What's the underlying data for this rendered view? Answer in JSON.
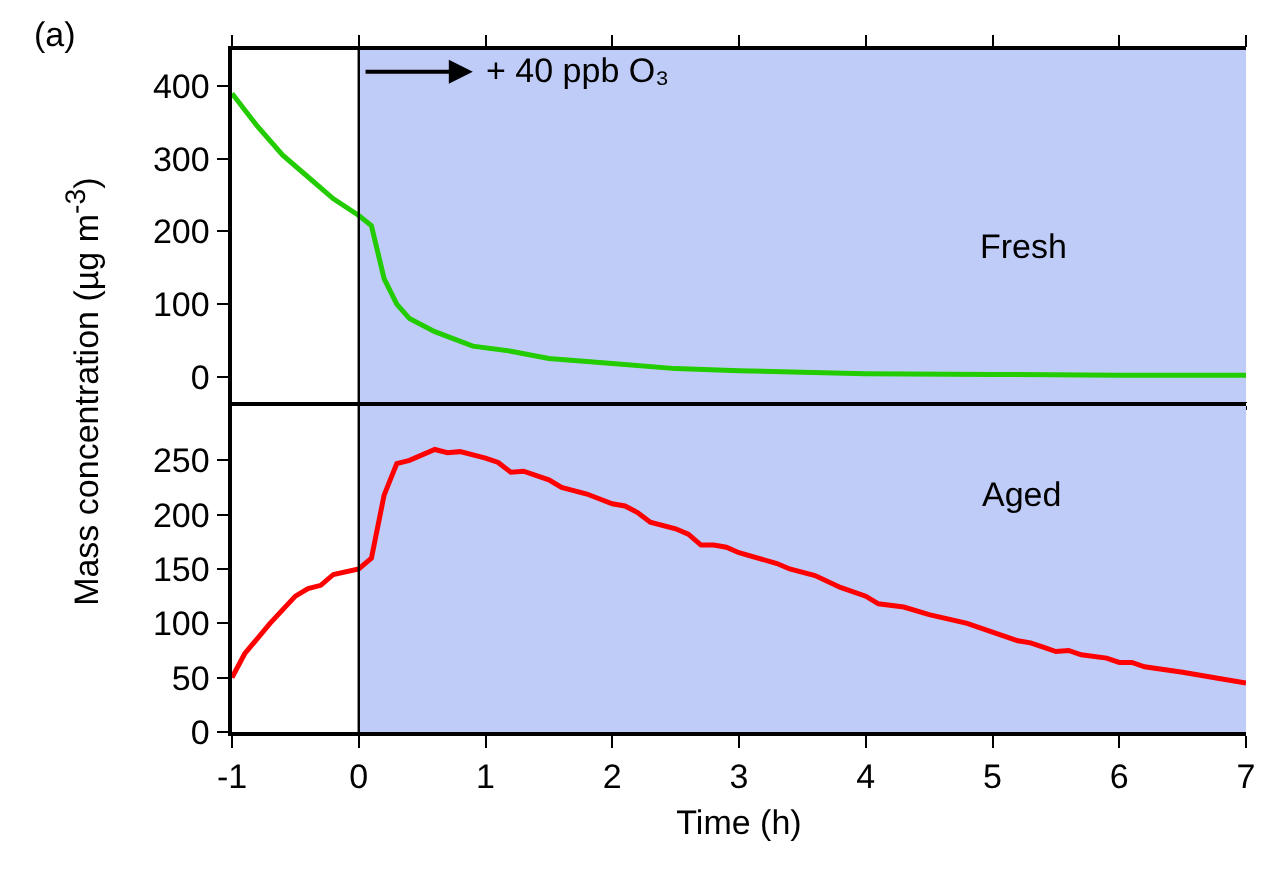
{
  "chart_data": [
    {
      "type": "line",
      "x": [
        -1,
        -0.8,
        -0.6,
        -0.4,
        -0.2,
        0,
        0.1,
        0.2,
        0.3,
        0.4,
        0.6,
        0.9,
        1.2,
        1.5,
        2,
        2.5,
        3,
        3.5,
        4,
        5,
        6,
        7
      ],
      "series": [
        {
          "color": "#22cc00",
          "values": [
            390,
            345,
            305,
            275,
            245,
            222,
            208,
            135,
            100,
            80,
            62,
            42,
            35,
            25,
            18,
            11,
            8,
            6,
            4,
            3,
            2,
            2
          ]
        }
      ],
      "xlim": [
        -1,
        7
      ],
      "ylim": [
        -35,
        450
      ],
      "yticks": [
        0,
        100,
        200,
        300,
        400
      ],
      "tick_labels": "y",
      "bands": [
        {
          "axis": "x",
          "from": 0,
          "to": 7,
          "color": "#c0ccf8"
        }
      ],
      "ref_lines": [
        {
          "axis": "x",
          "value": 0,
          "color": "#000000"
        }
      ],
      "annotations": [
        "(a)",
        {
          "text": "+ 40 ppb O₃",
          "x": 0,
          "y": 420
        },
        "Fresh"
      ]
    },
    {
      "type": "line",
      "x": [
        -1,
        -0.9,
        -0.7,
        -0.5,
        -0.4,
        -0.3,
        -0.2,
        0,
        0.1,
        0.2,
        0.3,
        0.4,
        0.6,
        0.7,
        0.8,
        1,
        1.1,
        1.2,
        1.3,
        1.5,
        1.6,
        1.8,
        2,
        2.1,
        2.2,
        2.3,
        2.5,
        2.6,
        2.7,
        2.8,
        2.9,
        3,
        3.3,
        3.4,
        3.6,
        3.8,
        4,
        4.1,
        4.3,
        4.5,
        4.8,
        5,
        5.2,
        5.3,
        5.4,
        5.5,
        5.6,
        5.7,
        5.9,
        6,
        6.1,
        6.2,
        6.5,
        6.8,
        7
      ],
      "series": [
        {
          "color": "#ff0000",
          "values": [
            50,
            72,
            100,
            125,
            132,
            135,
            145,
            150,
            160,
            218,
            247,
            250,
            260,
            257,
            258,
            252,
            248,
            239,
            240,
            232,
            225,
            219,
            210,
            208,
            202,
            193,
            187,
            182,
            172,
            172,
            170,
            165,
            155,
            150,
            144,
            133,
            125,
            118,
            115,
            108,
            100,
            92,
            84,
            82,
            78,
            74,
            75,
            71,
            68,
            64,
            64,
            60,
            55,
            49,
            45
          ]
        }
      ],
      "xlim": [
        -1,
        7
      ],
      "xticks": [
        -1,
        0,
        1,
        2,
        3,
        4,
        5,
        6,
        7
      ],
      "ylim": [
        0,
        300
      ],
      "yticks": [
        0,
        50,
        100,
        150,
        200,
        250
      ],
      "xlabel": "Time (h)",
      "ylabel": "Mass concentration (µg m$^{-3}$)",
      "bands": [
        {
          "axis": "x",
          "from": 0,
          "to": 7,
          "color": "#c0ccf8"
        }
      ],
      "ref_lines": [
        {
          "axis": "x",
          "value": 0,
          "color": "#000000"
        }
      ],
      "annotations": [
        "Aged"
      ]
    }
  ]
}
